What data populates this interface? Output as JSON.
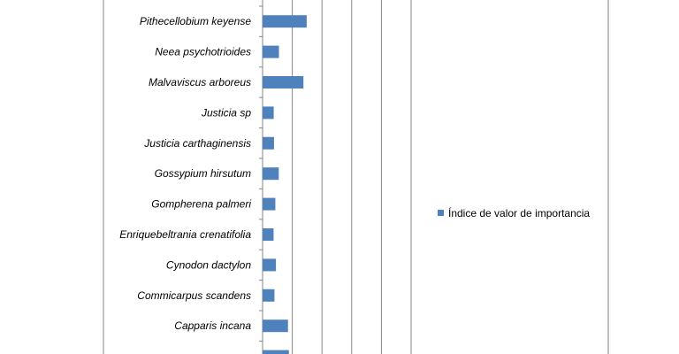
{
  "chart_data": {
    "type": "bar",
    "orientation": "horizontal",
    "categories": [
      "Pithecellobium keyense",
      "Neea psychotrioides",
      "Malvaviscus arboreus",
      "Justicia sp",
      "Justicia carthaginensis",
      "Gossypium hirsutum",
      "Gompherena palmeri",
      "Enriquebeltrania crenatifolia",
      "Cynodon dactylon",
      "Commicarpus scandens",
      "Capparis incana",
      ""
    ],
    "series": [
      {
        "name": "Índice de valor de importancia",
        "values": [
          29.7,
          11.0,
          27.5,
          7.5,
          7.7,
          10.9,
          8.6,
          7.4,
          9.0,
          8.0,
          17.1,
          17.7
        ]
      }
    ],
    "xlim": [
      0,
      100
    ],
    "grid": true,
    "legend_position": "right",
    "colors": {
      "bar": "#4f81bd",
      "grid": "#868686",
      "axis": "#868686",
      "frame": "#868686"
    }
  }
}
